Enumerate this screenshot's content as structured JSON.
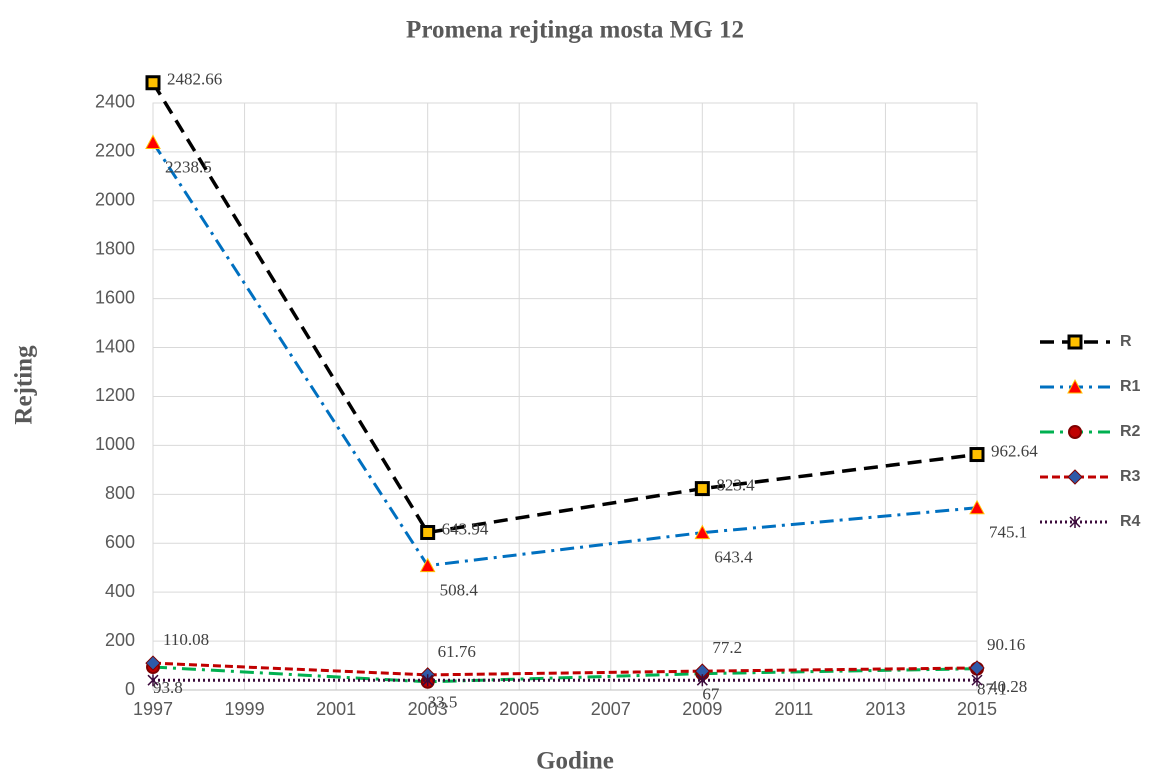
{
  "chart_data": {
    "type": "line",
    "title": "Promena rejtinga mosta MG 12",
    "x_label": "Godine",
    "y_label": "Rejting",
    "x": [
      1997,
      2003,
      2009,
      2015
    ],
    "xlim": [
      1997,
      2015
    ],
    "xticks": [
      1997,
      1999,
      2001,
      2003,
      2005,
      2007,
      2009,
      2011,
      2013,
      2015
    ],
    "ylim": [
      0,
      2500
    ],
    "yticks": [
      0,
      200,
      400,
      600,
      800,
      1000,
      1200,
      1400,
      1600,
      1800,
      2000,
      2200,
      2400
    ],
    "grid": true,
    "legend": "right",
    "series": [
      {
        "name": "R",
        "color": "#000000",
        "values": [
          2482.66,
          643.94,
          823.4,
          962.64
        ]
      },
      {
        "name": "R1",
        "color": "#0070c0",
        "values": [
          2238.5,
          508.4,
          643.4,
          745.1
        ]
      },
      {
        "name": "R2",
        "color": "#00b050",
        "values": [
          93.8,
          33.5,
          67,
          87.1
        ]
      },
      {
        "name": "R3",
        "color": "#c00000",
        "values": [
          110.08,
          61.76,
          77.2,
          90.16
        ]
      },
      {
        "name": "R4",
        "color": "#3b0a3b",
        "values": [
          40,
          40,
          40,
          40.28
        ],
        "value_labels": [
          null,
          null,
          null,
          "40.28"
        ]
      }
    ]
  }
}
